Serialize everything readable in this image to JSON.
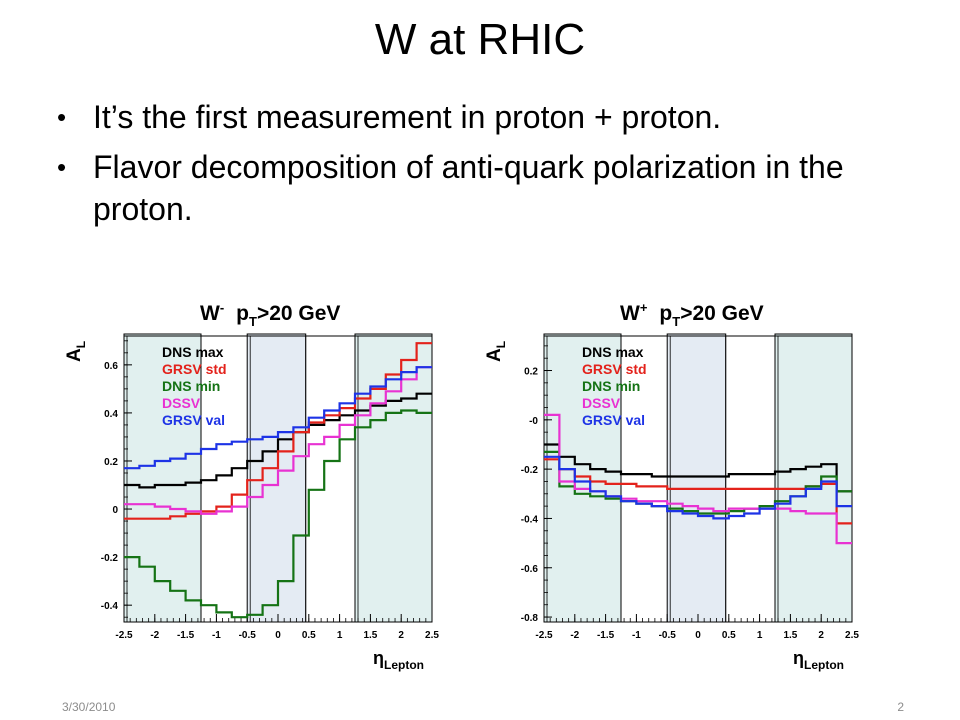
{
  "slide": {
    "title": "W at RHIC",
    "bullets": [
      "It’s the first measurement in proton + proton.",
      "Flavor decomposition of anti-quark polarization in the proton."
    ],
    "footer_date": "3/30/2010",
    "page_number": "2"
  },
  "chart_data": [
    {
      "type": "line",
      "title": "W⁻  pT>20 GeV",
      "title_parts": {
        "boson": "W",
        "charge": "-",
        "cut_var": "p",
        "cut_sub": "T",
        "cut_rest": ">20 GeV"
      },
      "xlabel": {
        "main": "η",
        "sub": "Lepton"
      },
      "ylabel": {
        "main": "A",
        "sub": "L"
      },
      "xlim": [
        -2.5,
        2.5
      ],
      "ylim": [
        -0.47,
        0.72
      ],
      "xticks": [
        "-2.5",
        "-2",
        "-1.5",
        "-1",
        "-0.5",
        "0",
        "0.5",
        "1",
        "1.5",
        "2",
        "2.5"
      ],
      "yticks": [
        "-0.4",
        "-0.2",
        "0",
        "0.2",
        "0.4",
        "0.6"
      ],
      "ytick_values": [
        -0.4,
        -0.2,
        0,
        0.2,
        0.4,
        0.6
      ],
      "bands": [
        {
          "from": -2.5,
          "to": -1.25,
          "color": "#e1f0ef"
        },
        {
          "from": -0.5,
          "to": 0.45,
          "color": "#e4ebf3"
        },
        {
          "from": 1.25,
          "to": 2.5,
          "color": "#e1f0ef"
        }
      ],
      "legend": [
        "DNS max",
        "GRSV std",
        "DNS min",
        "DSSV",
        "GRSV val"
      ],
      "bin_edges": [
        -2.5,
        -2.25,
        -2,
        -1.75,
        -1.5,
        -1.25,
        -1,
        -0.75,
        -0.5,
        -0.25,
        0,
        0.25,
        0.5,
        0.75,
        1,
        1.25,
        1.5,
        1.75,
        2,
        2.25,
        2.5
      ],
      "series": [
        {
          "name": "DNS max",
          "color": "#000000",
          "values": [
            0.1,
            0.09,
            0.1,
            0.1,
            0.11,
            0.12,
            0.14,
            0.17,
            0.2,
            0.24,
            0.29,
            0.32,
            0.35,
            0.37,
            0.39,
            0.41,
            0.43,
            0.45,
            0.46,
            0.48
          ]
        },
        {
          "name": "GRSV std",
          "color": "#e3221b",
          "values": [
            -0.04,
            -0.04,
            -0.04,
            -0.03,
            -0.02,
            -0.01,
            0.01,
            0.06,
            0.12,
            0.17,
            0.24,
            0.32,
            0.36,
            0.39,
            0.42,
            0.46,
            0.5,
            0.56,
            0.62,
            0.69
          ]
        },
        {
          "name": "DNS min",
          "color": "#157315",
          "values": [
            -0.2,
            -0.24,
            -0.3,
            -0.34,
            -0.38,
            -0.4,
            -0.43,
            -0.45,
            -0.44,
            -0.4,
            -0.3,
            -0.11,
            0.08,
            0.2,
            0.29,
            0.34,
            0.37,
            0.4,
            0.41,
            0.4
          ]
        },
        {
          "name": "DSSV",
          "color": "#e832d2",
          "values": [
            0.02,
            0.02,
            0.01,
            0.0,
            -0.01,
            -0.02,
            -0.01,
            0.01,
            0.05,
            0.1,
            0.16,
            0.22,
            0.27,
            0.3,
            0.35,
            0.39,
            0.44,
            0.49,
            0.54,
            0.59
          ]
        },
        {
          "name": "GRSV val",
          "color": "#1d33e6",
          "values": [
            0.17,
            0.18,
            0.2,
            0.21,
            0.23,
            0.25,
            0.27,
            0.28,
            0.29,
            0.3,
            0.32,
            0.34,
            0.38,
            0.41,
            0.44,
            0.48,
            0.51,
            0.54,
            0.57,
            0.59
          ]
        }
      ]
    },
    {
      "type": "line",
      "title": "W⁺  pT>20 GeV",
      "title_parts": {
        "boson": "W",
        "charge": "+",
        "cut_var": "p",
        "cut_sub": "T",
        "cut_rest": ">20 GeV"
      },
      "xlabel": {
        "main": "η",
        "sub": "Lepton"
      },
      "ylabel": {
        "main": "A",
        "sub": "L"
      },
      "xlim": [
        -2.5,
        2.5
      ],
      "ylim": [
        -0.82,
        0.34
      ],
      "xticks": [
        "-2.5",
        "-2",
        "-1.5",
        "-1",
        "-0.5",
        "0",
        "0.5",
        "1",
        "1.5",
        "2",
        "2.5"
      ],
      "yticks": [
        "-0.8",
        "-0.6",
        "-0.4",
        "-0.2",
        "-0",
        "0.2"
      ],
      "ytick_values": [
        -0.8,
        -0.6,
        -0.4,
        -0.2,
        0,
        0.2
      ],
      "bands": [
        {
          "from": -2.5,
          "to": -1.25,
          "color": "#e1f0ef"
        },
        {
          "from": -0.5,
          "to": 0.45,
          "color": "#e4ebf3"
        },
        {
          "from": 1.25,
          "to": 2.5,
          "color": "#e1f0ef"
        }
      ],
      "legend": [
        "DNS max",
        "GRSV std",
        "DNS min",
        "DSSV",
        "GRSV val"
      ],
      "bin_edges": [
        -2.5,
        -2.25,
        -2,
        -1.75,
        -1.5,
        -1.25,
        -1,
        -0.75,
        -0.5,
        -0.25,
        0,
        0.25,
        0.5,
        0.75,
        1,
        1.25,
        1.5,
        1.75,
        2,
        2.25,
        2.5
      ],
      "series": [
        {
          "name": "DNS max",
          "color": "#000000",
          "values": [
            -0.1,
            -0.15,
            -0.18,
            -0.2,
            -0.21,
            -0.22,
            -0.22,
            -0.23,
            -0.23,
            -0.23,
            -0.23,
            -0.23,
            -0.22,
            -0.22,
            -0.22,
            -0.21,
            -0.2,
            -0.19,
            -0.18,
            -0.29
          ]
        },
        {
          "name": "GRSV std",
          "color": "#e3221b",
          "values": [
            -0.16,
            -0.2,
            -0.23,
            -0.25,
            -0.26,
            -0.26,
            -0.27,
            -0.27,
            -0.28,
            -0.28,
            -0.28,
            -0.28,
            -0.28,
            -0.28,
            -0.28,
            -0.28,
            -0.28,
            -0.27,
            -0.26,
            -0.42
          ]
        },
        {
          "name": "DNS min",
          "color": "#157315",
          "values": [
            -0.13,
            -0.27,
            -0.3,
            -0.31,
            -0.32,
            -0.33,
            -0.34,
            -0.35,
            -0.36,
            -0.37,
            -0.38,
            -0.38,
            -0.37,
            -0.36,
            -0.35,
            -0.33,
            -0.31,
            -0.27,
            -0.23,
            -0.29
          ]
        },
        {
          "name": "DSSV",
          "color": "#e832d2",
          "values": [
            0.02,
            -0.25,
            -0.28,
            -0.29,
            -0.31,
            -0.32,
            -0.33,
            -0.33,
            -0.34,
            -0.35,
            -0.36,
            -0.37,
            -0.36,
            -0.36,
            -0.36,
            -0.36,
            -0.37,
            -0.38,
            -0.38,
            -0.5
          ]
        },
        {
          "name": "GRSV val",
          "color": "#1d33e6",
          "values": [
            -0.15,
            -0.2,
            -0.25,
            -0.29,
            -0.31,
            -0.33,
            -0.34,
            -0.35,
            -0.37,
            -0.38,
            -0.39,
            -0.4,
            -0.39,
            -0.38,
            -0.36,
            -0.34,
            -0.31,
            -0.28,
            -0.25,
            -0.35
          ]
        }
      ]
    }
  ]
}
